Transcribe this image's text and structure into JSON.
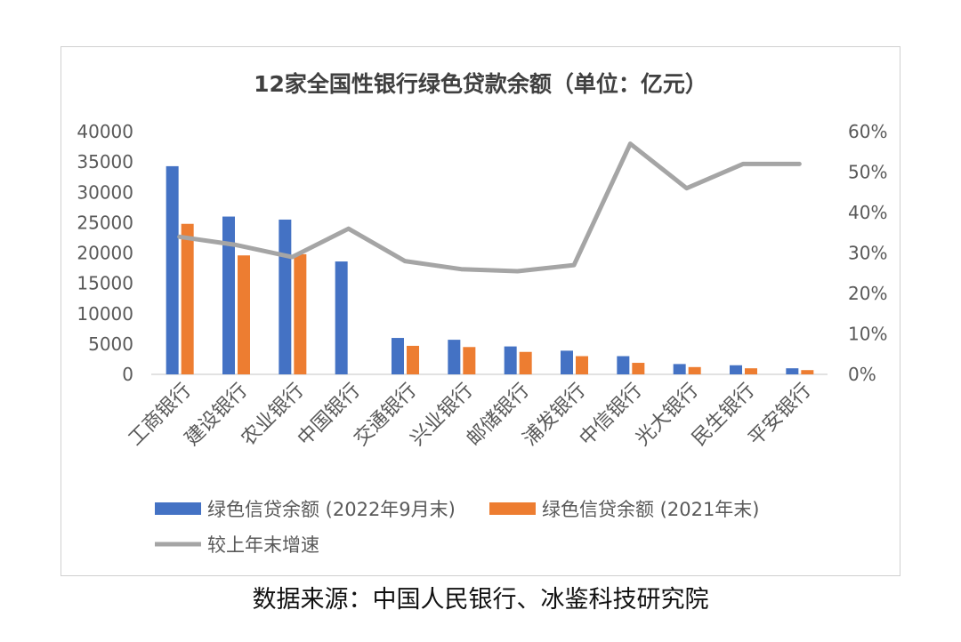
{
  "chart_data": {
    "type": "bar",
    "title": "12家全国性银行绿色贷款余额（单位：亿元）",
    "categories": [
      "工商银行",
      "建设银行",
      "农业银行",
      "中国银行",
      "交通银行",
      "兴业银行",
      "邮储银行",
      "浦发银行",
      "中信银行",
      "光大银行",
      "民生银行",
      "平安银行"
    ],
    "series": [
      {
        "name": "绿色信贷余额 (2022年9月末)",
        "color": "#4472c4",
        "values": [
          34300,
          26000,
          25500,
          18600,
          6000,
          5700,
          4600,
          3900,
          3000,
          1700,
          1500,
          1000
        ]
      },
      {
        "name": "绿色信贷余额 (2021年末)",
        "color": "#ed7d31",
        "values": [
          24800,
          19600,
          19800,
          null,
          4700,
          4500,
          3700,
          3000,
          1900,
          1200,
          1000,
          700
        ]
      },
      {
        "name": "较上年末增速",
        "color": "#a5a5a5",
        "type": "line",
        "axis": "right",
        "values": [
          0.34,
          0.32,
          0.29,
          0.36,
          0.28,
          0.26,
          0.255,
          0.27,
          0.57,
          0.46,
          0.52,
          0.52
        ]
      }
    ],
    "y_left": {
      "min": 0,
      "max": 40000,
      "ticks": [
        "0",
        "5000",
        "10000",
        "15000",
        "20000",
        "25000",
        "30000",
        "35000",
        "40000"
      ]
    },
    "y_right": {
      "min": 0,
      "max": 0.6,
      "ticks": [
        "0%",
        "10%",
        "20%",
        "30%",
        "40%",
        "50%",
        "60%"
      ]
    },
    "grid": false,
    "legend_position": "bottom"
  },
  "source": "数据来源：中国人民银行、冰鉴科技研究院"
}
